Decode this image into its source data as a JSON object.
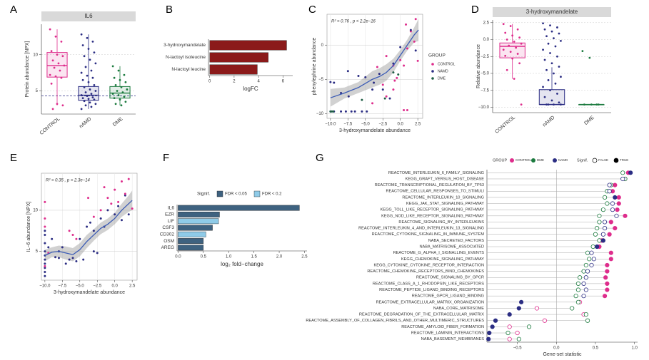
{
  "chart_data": [
    {
      "type": "box",
      "panel": "A",
      "title": "IL6",
      "ylabel": "Protein abundance [NPX]",
      "categories": [
        "CONTROL",
        "nAMD",
        "DME"
      ],
      "colors": [
        "#de2d8c",
        "#2b2d83",
        "#1b7a3e"
      ],
      "boxes": [
        {
          "low": 3.0,
          "q1": 6.9,
          "median": 8.5,
          "q3": 10.3,
          "high": 13.5
        },
        {
          "low": 2.5,
          "q1": 3.7,
          "median": 4.4,
          "q3": 5.6,
          "high": 12.8
        },
        {
          "low": 3.0,
          "q1": 4.0,
          "median": 4.7,
          "q3": 5.6,
          "high": 8.4
        }
      ],
      "points": [
        [
          13.5,
          12.5,
          11.8,
          10.5,
          10,
          9.8,
          9.2,
          8.8,
          8.5,
          8.2,
          7.8,
          7.2,
          7,
          6.8,
          6,
          3.2,
          3,
          2.5
        ],
        [
          12.8,
          12.3,
          11.8,
          11.3,
          10.8,
          10.3,
          9.8,
          9.3,
          8.8,
          8.3,
          7.8,
          7.5,
          7.1,
          6.8,
          6.5,
          6.2,
          5.8,
          5.5,
          5.2,
          5,
          4.8,
          4.6,
          4.4,
          4.3,
          4.1,
          4,
          3.9,
          3.8,
          3.6,
          3.4,
          3.2,
          3,
          2.8,
          2.5
        ],
        [
          8.4,
          7.8,
          7.2,
          6.8,
          6.5,
          6.2,
          5.8,
          5.5,
          5.2,
          5,
          4.8,
          4.6,
          4.4,
          4.2,
          4,
          3.8,
          3.5,
          3.2,
          3
        ]
      ],
      "hline": 4.3,
      "ylim": [
        1.8,
        14.2
      ],
      "yticks": [
        5,
        10
      ],
      "grid": true
    },
    {
      "type": "barh",
      "panel": "B",
      "xlabel": "logFC",
      "categories": [
        "3-hydroxymandelate",
        "N-lactoyl isoleucine",
        "N-lactoyl leucine"
      ],
      "values": [
        6.3,
        4.8,
        3.9
      ],
      "color": "#8b1a1a",
      "xlim": [
        -0.1,
        6.8
      ],
      "xticks": [
        0,
        2,
        4,
        6
      ]
    },
    {
      "type": "scatter",
      "panel": "C",
      "xlabel": "3-hydroxymandelate abundance",
      "ylabel": "phenylephrine abundance",
      "annotation": "R² = 0.76 , p < 2.2e−16",
      "legend_title": "GROUP",
      "series": [
        {
          "name": "CONTROL",
          "color": "#de2d8c",
          "x": [
            -2,
            -1,
            -0.5,
            0,
            0.5,
            1,
            1.5,
            2,
            2.2,
            0.5,
            -1,
            -2.5,
            -4,
            -3.3,
            1,
            2.5,
            0.8,
            -0.8,
            -2
          ],
          "values": [
            -1.6,
            -3,
            -4.8,
            -2.2,
            -3,
            -0.5,
            2,
            0.5,
            3.8,
            -9.5,
            -6.5,
            -5.8,
            -8.5,
            -3.2,
            -9.5,
            -2.3,
            3,
            -5.2,
            -7.5
          ]
        },
        {
          "name": "NAMD",
          "color": "#2b2d83",
          "x": [
            -10,
            -9.5,
            -8.5,
            -7.8,
            -7,
            -6.5,
            -5.5,
            -4.8,
            -9.5,
            -8.5,
            -7.5,
            -6,
            -5,
            -4,
            -3,
            -2.5,
            -1.5,
            -1,
            0,
            1.5,
            2.2,
            -10,
            -7.4,
            -3.8
          ],
          "values": [
            -9.7,
            -9.7,
            -9.7,
            -9.7,
            -9.7,
            -9.7,
            -9.7,
            -9.7,
            -5.5,
            -7,
            -3.8,
            -4.5,
            -4.7,
            -6.5,
            -4.2,
            -6.5,
            -7.8,
            -2.7,
            -0.3,
            2.2,
            -0.8,
            -5.4,
            -7.5,
            -5.5
          ]
        },
        {
          "name": "DME",
          "color": "#1f5e45",
          "x": [
            -9.6,
            -10,
            -9.8,
            -2.2,
            -1,
            -0.3,
            -5.5
          ],
          "values": [
            -9.7,
            -9.7,
            -9.7,
            -7.8,
            -4,
            -4.3,
            -8
          ]
        }
      ],
      "trend": {
        "color": "#3b5bb5",
        "x": [
          -10,
          -8,
          -6,
          -4,
          -3,
          -2,
          -1,
          0,
          1,
          2,
          2.6
        ],
        "values": [
          -7.7,
          -7.0,
          -6.2,
          -5.0,
          -4.6,
          -4.0,
          -3.0,
          -1.5,
          0,
          1.5,
          2.2
        ],
        "lower": [
          -9.0,
          -7.8,
          -7.0,
          -6.2,
          -5.8,
          -5.2,
          -4.0,
          -2.3,
          -0.8,
          0.4,
          0.6
        ],
        "upper": [
          -6.4,
          -6.2,
          -5.4,
          -3.8,
          -3.4,
          -2.8,
          -2.0,
          -0.7,
          0.8,
          2.6,
          3.8
        ]
      },
      "xlim": [
        -10.5,
        3.2
      ],
      "ylim": [
        -10.7,
        4.5
      ],
      "xticks": [
        {
          "value": -10,
          "label": "−10.0"
        },
        {
          "value": -7.5,
          "label": "−7.5"
        },
        {
          "value": -5,
          "label": "−5.0"
        },
        {
          "value": -2.5,
          "label": "−2.5"
        },
        {
          "value": 0,
          "label": "0.0"
        },
        2.5
      ],
      "yticks": [
        {
          "value": -10,
          "label": "−10"
        },
        {
          "value": -5,
          "label": "−5"
        },
        0
      ],
      "grid": true
    },
    {
      "type": "box",
      "panel": "D",
      "title": "3-hydroxymandelate",
      "ylabel": "Relative abundance",
      "categories": [
        "CONTROL",
        "nAMD",
        "DME"
      ],
      "colors": [
        "#de2d8c",
        "#2b2d83",
        "#1b7a3e"
      ],
      "boxes": [
        {
          "low": -5.8,
          "q1": -2.7,
          "median": -1.0,
          "q3": -0.5,
          "high": 2.3
        },
        {
          "low": -9.6,
          "q1": -9.6,
          "median": -9.6,
          "q3": -7.4,
          "high": -4.1
        },
        {
          "low": -9.6,
          "q1": -9.6,
          "median": -9.6,
          "q3": -9.6,
          "high": -9.6
        }
      ],
      "points": [
        [
          2.3,
          2,
          1.5,
          1,
          0.6,
          0.3,
          0,
          -0.3,
          -0.6,
          -0.9,
          -1.2,
          -1.5,
          -1.8,
          -2.1,
          -2.4,
          -2.8,
          -3.5,
          -4.5,
          -5.8,
          -9.6
        ],
        [
          2.4,
          2.1,
          1.8,
          1.5,
          1.2,
          0.9,
          0.5,
          0.2,
          -0.2,
          -0.6,
          -1,
          -1.5,
          -2,
          -2.5,
          -3,
          -3.5,
          -4,
          -4.5,
          -5,
          -5.5,
          -6,
          -6.5,
          -7,
          -7.5,
          -8,
          -8.5,
          -9,
          -9.3,
          -9.6,
          -9.6,
          -9.6,
          -9.6
        ],
        [
          -1.7,
          -2.7,
          -9.6,
          -9.6,
          -9.6,
          -9.6
        ]
      ],
      "ylim": [
        -10.8,
        2.9
      ],
      "yticks": [
        {
          "value": -10,
          "label": "−10.0"
        },
        {
          "value": -7.5,
          "label": "−7.5"
        },
        {
          "value": -5,
          "label": "−5.0"
        },
        {
          "value": -2.5,
          "label": "−2.5"
        },
        {
          "value": 0,
          "label": "0.0"
        },
        2.5
      ],
      "grid": true
    },
    {
      "type": "scatter",
      "panel": "E",
      "xlabel": "3-hydroxymandelate abundance",
      "ylabel": "IL−6 abundance [NPX]",
      "annotation": "R² = 0.35 , p = 2.3e−14",
      "series": [
        {
          "color": "#2b2d83",
          "x": [
            -10,
            -10,
            -10,
            -10,
            -10,
            -10,
            -10,
            -10,
            -10,
            -10,
            -9.5,
            -9,
            -8.5,
            -8,
            -8,
            -7.5,
            -7,
            -6.5,
            -6,
            -5.5,
            -5,
            -4.5,
            -3.5,
            -3,
            -3,
            -2.5,
            -2,
            -1.5,
            -1,
            0,
            0.5,
            1,
            1.5,
            2,
            -4
          ],
          "values": [
            4,
            4.5,
            3.5,
            5,
            3,
            2.5,
            6,
            7,
            7.5,
            2,
            5.5,
            6.5,
            4.3,
            5,
            4.2,
            5.5,
            3.5,
            4,
            4.2,
            3.8,
            6.5,
            4,
            8.5,
            7.5,
            5,
            4.8,
            9,
            8,
            10,
            9.5,
            10.5,
            8.8,
            11.8,
            9.5,
            8
          ]
        },
        {
          "color": "#de2d8c",
          "x": [
            -10,
            -10,
            -10,
            -10,
            -9.5,
            -6.5,
            -6,
            -5.5,
            -3.8,
            -2,
            -1.5,
            -1,
            -0.5,
            0,
            0.5,
            1,
            1.5,
            2,
            2.5,
            -3
          ],
          "values": [
            9,
            11,
            8,
            3.2,
            4.8,
            7.5,
            7,
            6.5,
            11.5,
            10,
            12.8,
            11.5,
            10.8,
            12.5,
            11,
            13.5,
            12,
            13.8,
            10.2,
            9.2
          ]
        }
      ],
      "trend": {
        "color": "#3b5bb5",
        "x": [
          -10,
          -9,
          -8,
          -7,
          -6,
          -5,
          -4,
          -3,
          -2,
          -1,
          0,
          1,
          2,
          2.5
        ],
        "values": [
          4.5,
          4.9,
          5.0,
          4.8,
          4.6,
          5.2,
          6.2,
          7.0,
          7.8,
          8.3,
          9.0,
          10.0,
          10.8,
          11.2
        ],
        "lower": [
          3.8,
          4.3,
          4.3,
          4.0,
          3.8,
          4.4,
          5.4,
          6.3,
          7.1,
          7.6,
          8.3,
          9.2,
          9.8,
          10.0
        ],
        "upper": [
          5.2,
          5.5,
          5.7,
          5.6,
          5.4,
          6.0,
          7.0,
          7.7,
          8.5,
          9.0,
          9.7,
          10.8,
          11.8,
          12.4
        ]
      },
      "xlim": [
        -10.5,
        3.2
      ],
      "ylim": [
        1.5,
        14.5
      ],
      "xticks": [
        {
          "value": -10,
          "label": "−10.0"
        },
        {
          "value": -7.5,
          "label": "−7.5"
        },
        {
          "value": -5,
          "label": "−5.0"
        },
        {
          "value": -2.5,
          "label": "−2.5"
        },
        {
          "value": 0,
          "label": "0.0"
        },
        2.5
      ],
      "yticks": [
        5,
        10
      ],
      "grid": true
    },
    {
      "type": "barh",
      "panel": "F",
      "xlabel": "log₂ fold−change",
      "categories": [
        "IL6",
        "EZR",
        "LIF",
        "CSF3",
        "CD302",
        "OSM",
        "AREG"
      ],
      "values": [
        2.4,
        0.82,
        0.8,
        0.68,
        0.55,
        0.5,
        0.5
      ],
      "colors": [
        "#3e6280",
        "#3e6280",
        "#8fcbe8",
        "#3e6280",
        "#8fcbe8",
        "#3e6280",
        "#3e6280"
      ],
      "legend": {
        "title": "Signif.",
        "entries": [
          {
            "label": "FDR < 0.05",
            "color": "#3e6280"
          },
          {
            "label": "FDR < 0.2",
            "color": "#8fcbe8"
          }
        ]
      },
      "xlim": [
        -0.02,
        2.55
      ],
      "xticks": [
        {
          "value": 0,
          "label": "0.0"
        },
        0.5,
        {
          "value": 1,
          "label": "1.0"
        },
        1.5,
        {
          "value": 2,
          "label": "2.0"
        },
        2.5
      ]
    },
    {
      "type": "dot",
      "panel": "G",
      "xlabel": "Gene-set statistic",
      "legend_title": "GROUP",
      "signif_title": "Signif.",
      "signif_labels": [
        "FALSE",
        "TRUE"
      ],
      "categories": [
        "REACTOME_INTERLEUKIN_6_FAMILY_SIGNALING",
        "KEGG_GRAFT_VERSUS_HOST_DISEASE",
        "REACTOME_TRANSCRIPTIONAL_REGULATION_BY_TP53",
        "REACTOME_CELLULAR_RESPONSES_TO_STIMULI",
        "REACTOME_INTERLEUKIN_10_SIGNALING",
        "KEGG_JAK_STAT_SIGNALING_PATHWAY",
        "KEGG_TOLL_LIKE_RECEPTOR_SIGNALING_PATHWAY",
        "KEGG_NOD_LIKE_RECEPTOR_SIGNALING_PATHWAY",
        "REACTOME_SIGNALING_BY_INTERLEUKINS",
        "REACTOME_INTERLEUKIN_4_AND_INTERLEUKIN_13_SIGNALING",
        "REACTOME_CYTOKINE_SIGNALING_IN_IMMUNE_SYSTEM",
        "NABA_SECRETED_FACTORS",
        "NABA_MATRISOME_ASSOCIATED",
        "REACTOME_G_ALPHA_I_SIGNALLING_EVENTS",
        "KEGG_CHEMOKINE_SIGNALING_PATHWAY",
        "KEGG_CYTOKINE_CYTOKINE_RECEPTOR_INTERACTION",
        "REACTOME_CHEMOKINE_RECEPTORS_BIND_CHEMOKINES",
        "REACTOME_SIGNALING_BY_GPCR",
        "REACTOME_CLASS_A_1_RHODOPSIN_LIKE_RECEPTORS",
        "REACTOME_PEPTIDE_LIGAND_BINDING_RECEPTORS",
        "REACTOME_GPCR_LIGAND_BINDING",
        "REACTOME_EXTRACELLULAR_MATRIX_ORGANIZATION",
        "NABA_CORE_MATRISOME",
        "REACTOME_DEGRADATION_OF_THE_EXTRACELLULAR_MATRIX",
        "REACTOME_ASSEMBLY_OF_COLLAGEN_FIBRILS_AND_OTHER_MULTIMERIC_STRUCTURES",
        "REACTOME_AMYLOID_FIBER_FORMATION",
        "REACTOME_LAMININ_INTERACTIONS",
        "NABA_BASEMENT_MEMBRANES"
      ],
      "series": [
        {
          "name": "CONTROL",
          "color": "#de2d8c",
          "values": [
            0.92,
            0.88,
            0.75,
            0.72,
            0.8,
            0.8,
            0.78,
            0.88,
            0.7,
            0.75,
            0.68,
            0.58,
            0.55,
            0.7,
            0.7,
            0.65,
            0.65,
            0.63,
            0.65,
            0.65,
            0.62,
            0.3,
            -0.25,
            0.35,
            -0.15,
            -0.6,
            -0.5,
            -0.6
          ],
          "significant": [
            true,
            true,
            true,
            true,
            true,
            true,
            true,
            true,
            true,
            true,
            true,
            true,
            true,
            true,
            true,
            true,
            true,
            true,
            true,
            true,
            true,
            false,
            false,
            false,
            false,
            false,
            false,
            false
          ]
        },
        {
          "name": "DME",
          "color": "#1b7a3e",
          "values": [
            0.85,
            0.88,
            0.7,
            0.65,
            0.62,
            0.65,
            0.6,
            0.55,
            0.55,
            0.52,
            0.5,
            0.55,
            0.47,
            0.4,
            0.42,
            0.38,
            0.35,
            0.3,
            0.28,
            0.28,
            0.25,
            0.28,
            0.2,
            0.38,
            0.4,
            -0.35,
            -0.62,
            -0.48
          ],
          "significant": [
            false,
            false,
            false,
            false,
            false,
            false,
            false,
            false,
            false,
            false,
            false,
            false,
            false,
            false,
            false,
            false,
            false,
            false,
            false,
            false,
            false,
            false,
            false,
            false,
            false,
            false,
            false,
            false
          ]
        },
        {
          "name": "NAMD",
          "color": "#2b2d83",
          "values": [
            0.95,
            0.85,
            0.68,
            0.68,
            0.75,
            0.72,
            0.72,
            0.77,
            0.62,
            0.62,
            0.6,
            0.6,
            0.52,
            0.45,
            0.48,
            0.45,
            0.4,
            0.38,
            0.35,
            0.38,
            0.35,
            -0.45,
            -0.48,
            -0.6,
            -0.78,
            -0.82,
            -0.86,
            -0.87
          ],
          "significant": [
            true,
            false,
            false,
            false,
            true,
            false,
            false,
            false,
            false,
            false,
            false,
            true,
            true,
            false,
            false,
            false,
            false,
            false,
            false,
            false,
            false,
            true,
            true,
            true,
            true,
            true,
            true,
            true
          ]
        }
      ],
      "xlim": [
        -0.89,
        1.04
      ],
      "xticks": [
        {
          "value": -0.5,
          "label": "−0.5"
        },
        {
          "value": 0,
          "label": "0.0"
        },
        0.5,
        {
          "value": 1,
          "label": "1.0"
        }
      ]
    }
  ]
}
